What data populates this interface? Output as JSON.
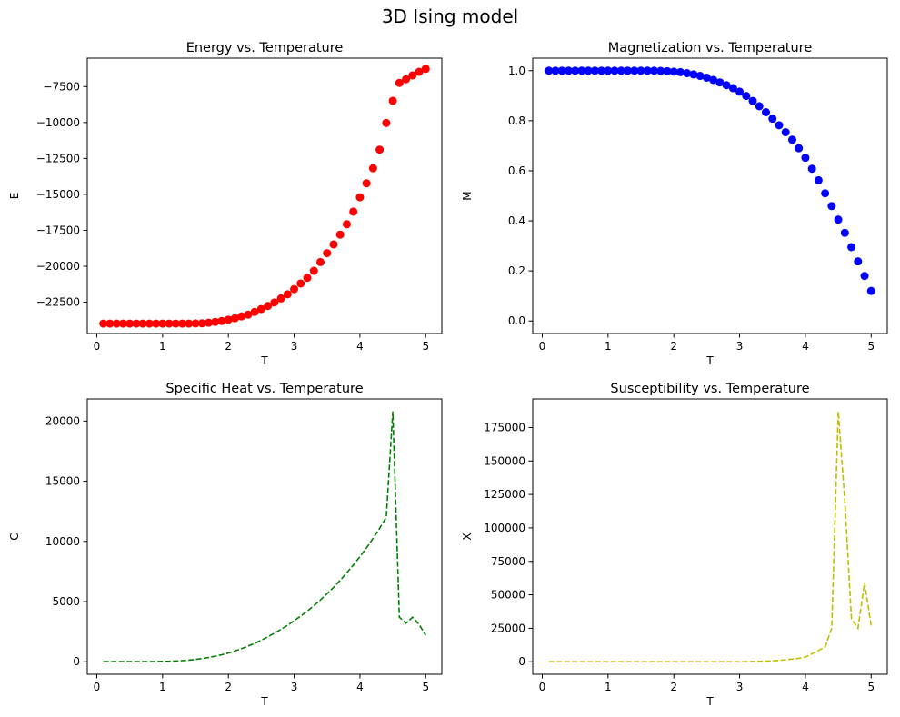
{
  "figure": {
    "title": "3D Ising model"
  },
  "chart_data": [
    {
      "type": "scatter",
      "title": "Energy vs. Temperature",
      "xlabel": "T",
      "ylabel": "E",
      "color": "#ff0000",
      "marker": "circle",
      "xlim": [
        -0.145,
        5.245
      ],
      "ylim": [
        -24680,
        -5520
      ],
      "xticks": [
        0,
        1,
        2,
        3,
        4,
        5
      ],
      "xtick_labels": [
        "0",
        "1",
        "2",
        "3",
        "4",
        "5"
      ],
      "yticks": [
        -22500,
        -20000,
        -17500,
        -15000,
        -12500,
        -10000,
        -7500
      ],
      "ytick_labels": [
        "−22500",
        "−20000",
        "−17500",
        "−15000",
        "−12500",
        "−10000",
        "−7500"
      ],
      "x": [
        0.1,
        0.2,
        0.3,
        0.4,
        0.5,
        0.6,
        0.7,
        0.8,
        0.9,
        1.0,
        1.1,
        1.2,
        1.3,
        1.4,
        1.5,
        1.6,
        1.7,
        1.8,
        1.9,
        2.0,
        2.1,
        2.2,
        2.3,
        2.4,
        2.5,
        2.6,
        2.7,
        2.8,
        2.9,
        3.0,
        3.1,
        3.2,
        3.3,
        3.4,
        3.5,
        3.6,
        3.7,
        3.8,
        3.9,
        4.0,
        4.1,
        4.2,
        4.3,
        4.4,
        4.5,
        4.6,
        4.7,
        4.8,
        4.9,
        5.0
      ],
      "y": [
        -23990,
        -23990,
        -23990,
        -23990,
        -23990,
        -23990,
        -23990,
        -23990,
        -23990,
        -23990,
        -23990,
        -23990,
        -23990,
        -23990,
        -23980,
        -23970,
        -23930,
        -23870,
        -23810,
        -23720,
        -23620,
        -23490,
        -23370,
        -23180,
        -22980,
        -22760,
        -22520,
        -22240,
        -21950,
        -21590,
        -21200,
        -20800,
        -20320,
        -19710,
        -19090,
        -18480,
        -17800,
        -17080,
        -16200,
        -15200,
        -14230,
        -13180,
        -11890,
        -10030,
        -8490,
        -7240,
        -6990,
        -6720,
        -6470,
        -6270
      ]
    },
    {
      "type": "scatter",
      "title": "Magnetization vs. Temperature",
      "xlabel": "T",
      "ylabel": "M",
      "color": "#0000ff",
      "marker": "circle",
      "xlim": [
        -0.145,
        5.245
      ],
      "ylim": [
        -0.05,
        1.05
      ],
      "xticks": [
        0,
        1,
        2,
        3,
        4,
        5
      ],
      "xtick_labels": [
        "0",
        "1",
        "2",
        "3",
        "4",
        "5"
      ],
      "yticks": [
        0.0,
        0.2,
        0.4,
        0.6,
        0.8,
        1.0
      ],
      "ytick_labels": [
        "0.0",
        "0.2",
        "0.4",
        "0.6",
        "0.8",
        "1.0"
      ],
      "x": [
        0.1,
        0.2,
        0.3,
        0.4,
        0.5,
        0.6,
        0.7,
        0.8,
        0.9,
        1.0,
        1.1,
        1.2,
        1.3,
        1.4,
        1.5,
        1.6,
        1.7,
        1.8,
        1.9,
        2.0,
        2.1,
        2.2,
        2.3,
        2.4,
        2.5,
        2.6,
        2.7,
        2.8,
        2.9,
        3.0,
        3.1,
        3.2,
        3.3,
        3.4,
        3.5,
        3.6,
        3.7,
        3.8,
        3.9,
        4.0,
        4.1,
        4.2,
        4.3,
        4.4,
        4.5,
        4.6,
        4.7,
        4.8,
        4.9,
        5.0
      ],
      "y": [
        1.0,
        1.0,
        1.0,
        1.0,
        1.0,
        1.0,
        1.0,
        1.0,
        1.0,
        1.0,
        1.0,
        1.0,
        1.0,
        1.0,
        1.0,
        1.0,
        1.0,
        0.999,
        0.998,
        0.996,
        0.994,
        0.99,
        0.985,
        0.979,
        0.972,
        0.963,
        0.953,
        0.942,
        0.93,
        0.916,
        0.899,
        0.879,
        0.858,
        0.834,
        0.808,
        0.782,
        0.754,
        0.724,
        0.69,
        0.652,
        0.608,
        0.562,
        0.51,
        0.459,
        0.405,
        0.352,
        0.295,
        0.238,
        0.18,
        0.12
      ]
    },
    {
      "type": "line",
      "title": "Specific Heat vs. Temperature",
      "xlabel": "T",
      "ylabel": "C",
      "color": "#008000",
      "linestyle": "dashed",
      "xlim": [
        -0.145,
        5.245
      ],
      "ylim": [
        -1040,
        21840
      ],
      "xticks": [
        0,
        1,
        2,
        3,
        4,
        5
      ],
      "xtick_labels": [
        "0",
        "1",
        "2",
        "3",
        "4",
        "5"
      ],
      "yticks": [
        0,
        5000,
        10000,
        15000,
        20000
      ],
      "ytick_labels": [
        "0",
        "5000",
        "10000",
        "15000",
        "20000"
      ],
      "x": [
        0.1,
        0.2,
        0.3,
        0.4,
        0.5,
        0.6,
        0.7,
        0.8,
        0.9,
        1.0,
        1.1,
        1.2,
        1.3,
        1.4,
        1.5,
        1.6,
        1.7,
        1.8,
        1.9,
        2.0,
        2.1,
        2.2,
        2.3,
        2.4,
        2.5,
        2.6,
        2.7,
        2.8,
        2.9,
        3.0,
        3.1,
        3.2,
        3.3,
        3.4,
        3.5,
        3.6,
        3.7,
        3.8,
        3.9,
        4.0,
        4.1,
        4.2,
        4.3,
        4.4,
        4.5,
        4.6,
        4.7,
        4.8,
        4.9,
        5.0
      ],
      "y": [
        10,
        10,
        10,
        10,
        10,
        10,
        10,
        10,
        20,
        30,
        40,
        60,
        90,
        140,
        200,
        270,
        360,
        460,
        580,
        730,
        900,
        1090,
        1300,
        1530,
        1790,
        2070,
        2370,
        2690,
        3040,
        3410,
        3800,
        4210,
        4660,
        5140,
        5650,
        6190,
        6770,
        7390,
        8040,
        8740,
        9470,
        10260,
        11090,
        12000,
        20800,
        3700,
        3200,
        3700,
        3100,
        2200
      ]
    },
    {
      "type": "line",
      "title": "Susceptibility vs. Temperature",
      "xlabel": "T",
      "ylabel": "X",
      "color": "#bfbf00",
      "linestyle": "dashed",
      "xlim": [
        -0.145,
        5.245
      ],
      "ylim": [
        -9350,
        196350
      ],
      "xticks": [
        0,
        1,
        2,
        3,
        4,
        5
      ],
      "xtick_labels": [
        "0",
        "1",
        "2",
        "3",
        "4",
        "5"
      ],
      "yticks": [
        0,
        25000,
        50000,
        75000,
        100000,
        125000,
        150000,
        175000
      ],
      "ytick_labels": [
        "0",
        "25000",
        "50000",
        "75000",
        "100000",
        "125000",
        "150000",
        "175000"
      ],
      "x": [
        0.1,
        0.2,
        0.3,
        0.4,
        0.5,
        0.6,
        0.7,
        0.8,
        0.9,
        1.0,
        1.1,
        1.2,
        1.3,
        1.4,
        1.5,
        1.6,
        1.7,
        1.8,
        1.9,
        2.0,
        2.1,
        2.2,
        2.3,
        2.4,
        2.5,
        2.6,
        2.7,
        2.8,
        2.9,
        3.0,
        3.1,
        3.2,
        3.3,
        3.4,
        3.5,
        3.6,
        3.7,
        3.8,
        3.9,
        4.0,
        4.1,
        4.2,
        4.3,
        4.4,
        4.5,
        4.6,
        4.7,
        4.8,
        4.9,
        5.0
      ],
      "y": [
        0,
        0,
        0,
        0,
        0,
        0,
        0,
        0,
        0,
        0,
        0,
        0,
        0,
        0,
        0,
        0,
        0,
        0,
        0,
        0,
        0,
        0,
        0,
        0,
        0,
        0,
        0,
        0,
        0,
        0,
        100,
        200,
        300,
        500,
        700,
        1000,
        1500,
        2000,
        2600,
        3500,
        6000,
        8500,
        11000,
        25000,
        187000,
        120000,
        32000,
        25000,
        59000,
        27000
      ]
    }
  ]
}
